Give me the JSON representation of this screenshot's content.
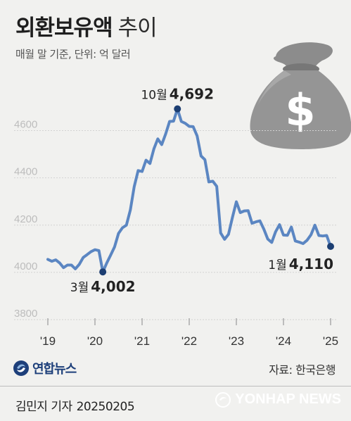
{
  "title": {
    "main": "외환보유액",
    "sub": "추이"
  },
  "subtitle": "매월 말 기준, 단위: 억 달러",
  "source": "자료: 한국은행",
  "byline": {
    "reporter": "김민지 기자",
    "date": "20250205"
  },
  "logo_text": "연합뉴스",
  "agency_text": "YONHAP NEWS",
  "icons": {
    "illustration": "money-bag-icon",
    "logo": "yonhap-logo-icon"
  },
  "colors": {
    "line": "#5b86c2",
    "marker": "#1c3e72",
    "grid": "#d2d2d2",
    "tick": "#aaaaaa",
    "background": "#f1f1ef"
  },
  "chart_data": {
    "type": "line",
    "x_tick_labels": [
      "'19",
      "'20",
      "'21",
      "'22",
      "'23",
      "'24",
      "'25"
    ],
    "y_ticks": [
      3800,
      4000,
      4200,
      4400,
      4600
    ],
    "ylim": [
      3800,
      4700
    ],
    "xlim": [
      "2019-01",
      "2025-01"
    ],
    "grid": true,
    "series": [
      {
        "x": [
          "2019-01",
          "2019-02",
          "2019-03",
          "2019-04",
          "2019-05",
          "2019-06",
          "2019-07",
          "2019-08",
          "2019-09",
          "2019-10",
          "2019-11",
          "2019-12",
          "2020-01",
          "2020-02",
          "2020-03",
          "2020-04",
          "2020-05",
          "2020-06",
          "2020-07",
          "2020-08",
          "2020-09",
          "2020-10",
          "2020-11",
          "2020-12",
          "2021-01",
          "2021-02",
          "2021-03",
          "2021-04",
          "2021-05",
          "2021-06",
          "2021-07",
          "2021-08",
          "2021-09",
          "2021-10",
          "2021-11",
          "2021-12",
          "2022-01",
          "2022-02",
          "2022-03",
          "2022-04",
          "2022-05",
          "2022-06",
          "2022-07",
          "2022-08",
          "2022-09",
          "2022-10",
          "2022-11",
          "2022-12",
          "2023-01",
          "2023-02",
          "2023-03",
          "2023-04",
          "2023-05",
          "2023-06",
          "2023-07",
          "2023-08",
          "2023-09",
          "2023-10",
          "2023-11",
          "2023-12",
          "2024-01",
          "2024-02",
          "2024-03",
          "2024-04",
          "2024-05",
          "2024-06",
          "2024-07",
          "2024-08",
          "2024-09",
          "2024-10",
          "2024-11",
          "2024-12",
          "2025-01"
        ],
        "values": [
          4055,
          4047,
          4053,
          4040,
          4020,
          4031,
          4031,
          4015,
          4034,
          4063,
          4075,
          4088,
          4096,
          4092,
          4002,
          4040,
          4073,
          4108,
          4165,
          4189,
          4200,
          4264,
          4363,
          4431,
          4427,
          4475,
          4461,
          4523,
          4565,
          4541,
          4586,
          4639,
          4640,
          4692,
          4639,
          4631,
          4618,
          4617,
          4578,
          4493,
          4477,
          4383,
          4386,
          4364,
          4167,
          4140,
          4161,
          4232,
          4299,
          4253,
          4260,
          4261,
          4208,
          4214,
          4218,
          4183,
          4141,
          4127,
          4172,
          4202,
          4158,
          4157,
          4192,
          4133,
          4128,
          4122,
          4136,
          4159,
          4200,
          4156,
          4154,
          4156,
          4110
        ]
      }
    ],
    "annotations": [
      {
        "x": "2020-03",
        "month_label": "3월",
        "value_label": "4,002",
        "position": "below"
      },
      {
        "x": "2021-10",
        "month_label": "10월",
        "value_label": "4,692",
        "position": "above"
      },
      {
        "x": "2025-01",
        "month_label": "1월",
        "value_label": "4,110",
        "position": "below-left"
      }
    ]
  }
}
